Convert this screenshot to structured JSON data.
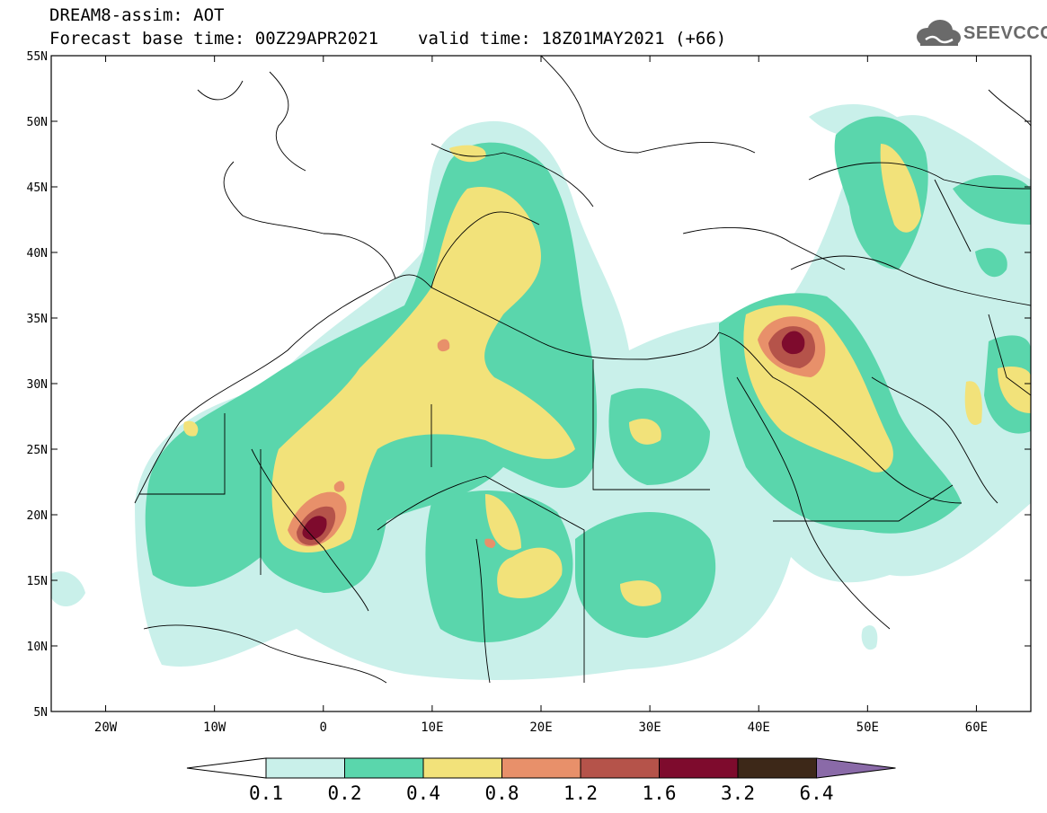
{
  "header": {
    "title": "DREAM8-assim: AOT",
    "base_time": "Forecast base time: 00Z29APR2021",
    "valid_time": "valid time: 18Z01MAY2021 (+66)"
  },
  "logo": {
    "text": "SEEVCCC",
    "icon": "cloud-icon"
  },
  "axes": {
    "lat_labels": [
      "55N",
      "50N",
      "45N",
      "40N",
      "35N",
      "30N",
      "25N",
      "20N",
      "15N",
      "10N",
      "5N"
    ],
    "lat_values": [
      55,
      50,
      45,
      40,
      35,
      30,
      25,
      20,
      15,
      10,
      5
    ],
    "lon_labels": [
      "20W",
      "10W",
      "0",
      "10E",
      "20E",
      "30E",
      "40E",
      "50E",
      "60E"
    ],
    "lon_values": [
      -20,
      -10,
      0,
      10,
      20,
      30,
      40,
      50,
      60
    ],
    "lon_range": [
      -25,
      65
    ],
    "lat_range": [
      5,
      55
    ]
  },
  "colorbar": {
    "levels": [
      "0.1",
      "0.2",
      "0.4",
      "0.8",
      "1.2",
      "1.6",
      "3.2",
      "6.4"
    ],
    "colors": [
      "#c9f0ea",
      "#5ad6ac",
      "#f2e27a",
      "#e8906a",
      "#b5534a",
      "#7e0b2d",
      "#3d2818",
      "#8a6aa8"
    ]
  },
  "field": {
    "aot_levels": [
      0.1,
      0.2,
      0.4,
      0.8,
      1.2,
      1.6
    ],
    "blobs": [
      {
        "lon": 5,
        "lat": 27,
        "level": 0.1
      },
      {
        "lon": 12,
        "lat": 33,
        "level": 0.2
      },
      {
        "lon": 1,
        "lat": 23,
        "level": 0.4
      },
      {
        "lon": -0.5,
        "lat": 19.8,
        "level": 1.6
      },
      {
        "lon": 44,
        "lat": 33,
        "level": 1.6
      },
      {
        "lon": 18,
        "lat": 16,
        "level": 0.4
      }
    ]
  }
}
